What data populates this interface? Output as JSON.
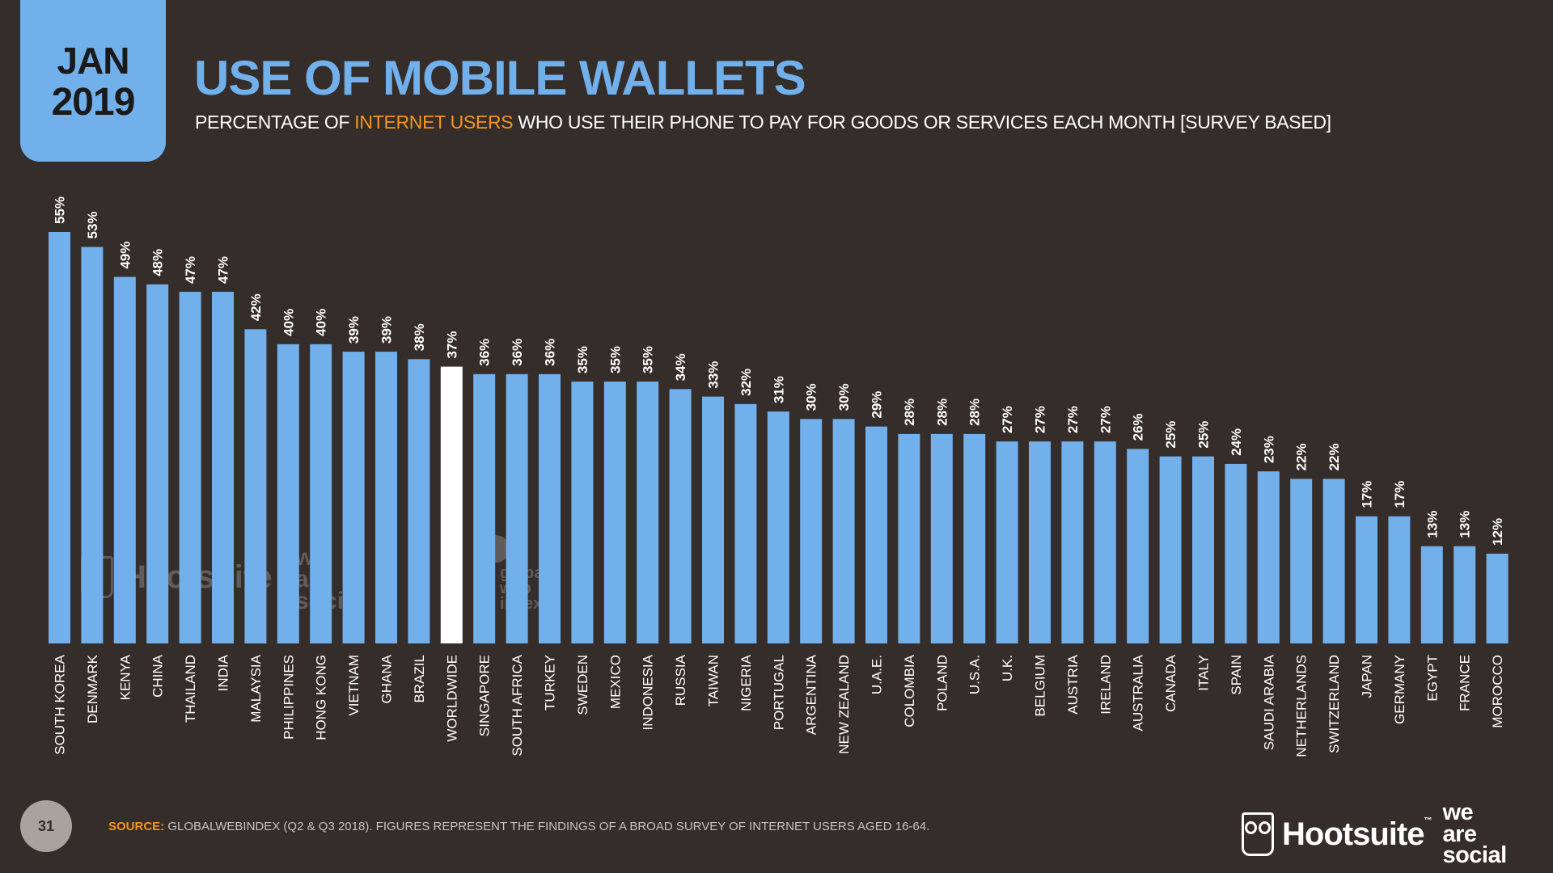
{
  "header": {
    "month": "JAN",
    "year": "2019",
    "title": "USE OF MOBILE WALLETS",
    "subtitle_pre": "PERCENTAGE OF ",
    "subtitle_highlight": "INTERNET USERS",
    "subtitle_post": " WHO USE THEIR PHONE TO PAY FOR GOODS OR SERVICES EACH MONTH [SURVEY BASED]"
  },
  "footer": {
    "page_number": "31",
    "source_label": "SOURCE:",
    "source_text": " GLOBALWEBINDEX (Q2 & Q3 2018). FIGURES REPRESENT THE FINDINGS OF A BROAD SURVEY OF INTERNET USERS AGED 16-64.",
    "brand_name": "Hootsuite",
    "brand_tm": "™",
    "brand_secondary": [
      "we",
      "are",
      "social"
    ]
  },
  "watermarks": {
    "hootsuite": "Hootsuite",
    "we_are_social": [
      "we",
      "are",
      "social"
    ],
    "gwi": [
      "global",
      "web",
      "index"
    ]
  },
  "colors": {
    "background": "#342d2a",
    "bar": "#72b0ec",
    "highlight_bar": "#ffffff",
    "accent": "#f7941d",
    "title": "#72b0ec"
  },
  "chart_data": {
    "type": "bar",
    "title": "USE OF MOBILE WALLETS",
    "xlabel": "",
    "ylabel": "",
    "ylim": [
      0,
      55
    ],
    "grid": false,
    "highlight": "WORLDWIDE",
    "value_suffix": "%",
    "categories": [
      "SOUTH KOREA",
      "DENMARK",
      "KENYA",
      "CHINA",
      "THAILAND",
      "INDIA",
      "MALAYSIA",
      "PHILIPPINES",
      "HONG KONG",
      "VIETNAM",
      "GHANA",
      "BRAZIL",
      "WORLDWIDE",
      "SINGAPORE",
      "SOUTH AFRICA",
      "TURKEY",
      "SWEDEN",
      "MEXICO",
      "INDONESIA",
      "RUSSIA",
      "TAIWAN",
      "NIGERIA",
      "PORTUGAL",
      "ARGENTINA",
      "NEW ZEALAND",
      "U.A.E.",
      "COLOMBIA",
      "POLAND",
      "U.S.A.",
      "U.K.",
      "BELGIUM",
      "AUSTRIA",
      "IRELAND",
      "AUSTRALIA",
      "CANADA",
      "ITALY",
      "SPAIN",
      "SAUDI ARABIA",
      "NETHERLANDS",
      "SWITZERLAND",
      "JAPAN",
      "GERMANY",
      "EGYPT",
      "FRANCE",
      "MOROCCO"
    ],
    "values": [
      55,
      53,
      49,
      48,
      47,
      47,
      42,
      40,
      40,
      39,
      39,
      38,
      37,
      36,
      36,
      36,
      35,
      35,
      35,
      34,
      33,
      32,
      31,
      30,
      30,
      29,
      28,
      28,
      28,
      27,
      27,
      27,
      27,
      26,
      25,
      25,
      24,
      23,
      22,
      22,
      17,
      17,
      13,
      13,
      12
    ]
  }
}
